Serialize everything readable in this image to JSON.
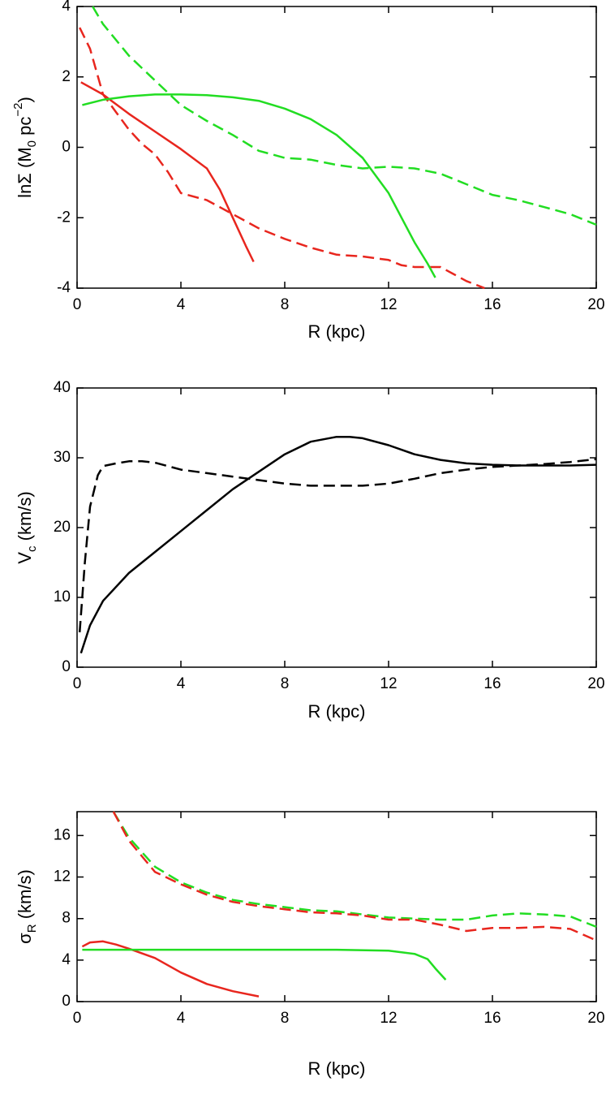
{
  "chart_data": [
    {
      "type": "line",
      "xlabel": "R (kpc)",
      "ylabel_parts": [
        {
          "text": "lnΣ (M"
        },
        {
          "text": "0",
          "sub": true
        },
        {
          "text": " pc"
        },
        {
          "text": "−2",
          "sup": true
        },
        {
          "text": ")"
        }
      ],
      "xlim": [
        0,
        20
      ],
      "xticks": [
        0,
        4,
        8,
        12,
        16,
        20
      ],
      "ylim": [
        -4,
        4
      ],
      "yticks": [
        -4,
        -2,
        0,
        2,
        4
      ],
      "series": [
        {
          "color": "#e8261e",
          "dashed": false,
          "x": [
            0.15,
            1,
            2,
            3,
            4,
            5,
            5.5,
            6,
            6.5,
            6.8
          ],
          "values": [
            1.85,
            1.5,
            0.95,
            0.45,
            -0.05,
            -0.6,
            -1.2,
            -2.0,
            -2.8,
            -3.25
          ]
        },
        {
          "color": "#e8261e",
          "dashed": true,
          "x": [
            0.1,
            0.5,
            1,
            1.5,
            2,
            2.5,
            3,
            3.5,
            4,
            5,
            6,
            7,
            8,
            9,
            10,
            11,
            12,
            12.5,
            13,
            14,
            14.5,
            15,
            15.7
          ],
          "values": [
            3.4,
            2.8,
            1.5,
            1.0,
            0.5,
            0.1,
            -0.2,
            -0.7,
            -1.3,
            -1.5,
            -1.9,
            -2.3,
            -2.6,
            -2.85,
            -3.05,
            -3.1,
            -3.2,
            -3.35,
            -3.4,
            -3.4,
            -3.6,
            -3.8,
            -4.0
          ]
        },
        {
          "color": "#22dd22",
          "dashed": false,
          "x": [
            0.2,
            1,
            2,
            3,
            4,
            5,
            6,
            7,
            8,
            9,
            10,
            11,
            12,
            12.5,
            13,
            13.5,
            13.8
          ],
          "values": [
            1.2,
            1.35,
            1.45,
            1.5,
            1.5,
            1.48,
            1.42,
            1.32,
            1.1,
            0.8,
            0.35,
            -0.3,
            -1.3,
            -2.0,
            -2.7,
            -3.3,
            -3.7
          ]
        },
        {
          "color": "#22dd22",
          "dashed": true,
          "x": [
            0.6,
            1,
            2,
            3,
            4,
            5,
            6,
            7,
            8,
            9,
            10,
            11,
            12,
            13,
            14,
            15,
            16,
            17,
            18,
            19,
            20
          ],
          "values": [
            4.0,
            3.5,
            2.6,
            1.9,
            1.2,
            0.75,
            0.35,
            -0.1,
            -0.3,
            -0.35,
            -0.5,
            -0.6,
            -0.55,
            -0.6,
            -0.75,
            -1.05,
            -1.35,
            -1.5,
            -1.7,
            -1.9,
            -2.2
          ]
        }
      ]
    },
    {
      "type": "line",
      "xlabel": "R (kpc)",
      "ylabel_parts": [
        {
          "text": "V"
        },
        {
          "text": "c",
          "sub": true
        },
        {
          "text": " (km/s)"
        }
      ],
      "xlim": [
        0,
        20
      ],
      "xticks": [
        0,
        4,
        8,
        12,
        16,
        20
      ],
      "ylim": [
        0,
        40
      ],
      "yticks": [
        0,
        10,
        20,
        30,
        40
      ],
      "series": [
        {
          "color": "#000000",
          "dashed": false,
          "x": [
            0.15,
            0.5,
            1,
            2,
            3,
            4,
            5,
            6,
            7,
            8,
            9,
            10,
            10.5,
            11,
            12,
            13,
            14,
            15,
            16,
            17,
            18,
            19,
            20
          ],
          "values": [
            2,
            6,
            9.5,
            13.5,
            16.5,
            19.5,
            22.5,
            25.5,
            28,
            30.5,
            32.3,
            33,
            33,
            32.8,
            31.8,
            30.5,
            29.7,
            29.2,
            29,
            28.9,
            28.9,
            28.9,
            29
          ]
        },
        {
          "color": "#000000",
          "dashed": true,
          "x": [
            0.1,
            0.3,
            0.5,
            0.8,
            1,
            1.5,
            2,
            2.5,
            3,
            4,
            5,
            6,
            7,
            8,
            9,
            10,
            11,
            12,
            13,
            14,
            15,
            16,
            17,
            18,
            19,
            20
          ],
          "values": [
            5,
            15,
            23,
            27.5,
            28.8,
            29.2,
            29.5,
            29.5,
            29.3,
            28.3,
            27.8,
            27.3,
            26.8,
            26.3,
            26,
            26,
            26,
            26.3,
            27,
            27.8,
            28.3,
            28.7,
            28.9,
            29.1,
            29.4,
            29.8
          ]
        }
      ]
    },
    {
      "type": "line",
      "xlabel": "R (kpc)",
      "ylabel_parts": [
        {
          "text": "σ"
        },
        {
          "text": "R",
          "sub": true
        },
        {
          "text": " (km/s)"
        }
      ],
      "xlim": [
        0,
        20
      ],
      "xticks": [
        0,
        4,
        8,
        12,
        16,
        20
      ],
      "ylim": [
        0,
        18.3
      ],
      "yticks": [
        0,
        4,
        8,
        12,
        16
      ],
      "series": [
        {
          "color": "#e8261e",
          "dashed": false,
          "x": [
            0.2,
            0.5,
            1,
            1.5,
            2,
            3,
            4,
            5,
            6,
            7
          ],
          "values": [
            5.3,
            5.7,
            5.8,
            5.5,
            5.1,
            4.2,
            2.8,
            1.7,
            1.0,
            0.5
          ]
        },
        {
          "color": "#22dd22",
          "dashed": false,
          "x": [
            0.2,
            1,
            2,
            4,
            6,
            8,
            10,
            12,
            13,
            13.5,
            13.8,
            14.2
          ],
          "values": [
            5,
            5,
            5,
            5,
            5,
            5,
            5,
            4.9,
            4.6,
            4.1,
            3.2,
            2.1
          ]
        },
        {
          "color": "#22dd22",
          "dashed": true,
          "x": [
            1.4,
            2,
            3,
            4,
            5,
            6,
            7,
            8,
            9,
            10,
            11,
            12,
            13,
            14,
            15,
            16,
            17,
            18,
            19,
            20
          ],
          "values": [
            18.3,
            15.8,
            13,
            11.5,
            10.5,
            9.8,
            9.4,
            9.1,
            8.8,
            8.7,
            8.4,
            8.1,
            8.0,
            7.9,
            7.9,
            8.3,
            8.5,
            8.4,
            8.2,
            7.2
          ]
        },
        {
          "color": "#e8261e",
          "dashed": true,
          "x": [
            1.4,
            2,
            3,
            4,
            5,
            6,
            7,
            8,
            9,
            10,
            11,
            12,
            13,
            14,
            15,
            16,
            17,
            18,
            19,
            20
          ],
          "values": [
            18.3,
            15.5,
            12.5,
            11.3,
            10.3,
            9.6,
            9.2,
            8.9,
            8.6,
            8.5,
            8.3,
            7.9,
            7.9,
            7.4,
            6.8,
            7.1,
            7.1,
            7.2,
            7.0,
            5.9
          ]
        }
      ]
    }
  ]
}
